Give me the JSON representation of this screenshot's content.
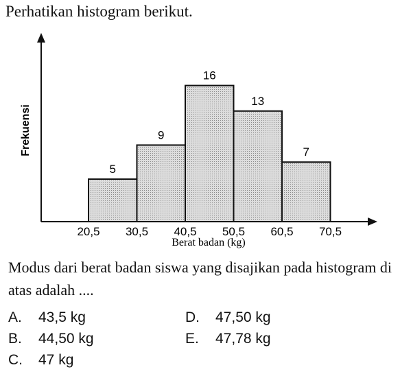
{
  "intro": "Perhatikan histogram berikut.",
  "chart_data": {
    "type": "bar",
    "categories": [
      "20,5-30,5",
      "30,5-40,5",
      "40,5-50,5",
      "50,5-60,5",
      "60,5-70,5"
    ],
    "edges": [
      "20,5",
      "30,5",
      "40,5",
      "50,5",
      "60,5",
      "70,5"
    ],
    "values": [
      5,
      9,
      16,
      13,
      7
    ],
    "data_labels": [
      "5",
      "9",
      "16",
      "13",
      "7"
    ],
    "xlabel": "Berat badan (kg)",
    "ylabel": "Frekuensi",
    "ylim": [
      0,
      20
    ],
    "grid": false,
    "bar_fill": "#d7d7d7"
  },
  "question": "Modus dari berat badan siswa yang disajikan pada histogram di atas adalah ....",
  "options": [
    {
      "letter": "A.",
      "text": "43,5 kg"
    },
    {
      "letter": "B.",
      "text": "44,50 kg"
    },
    {
      "letter": "C.",
      "text": "47 kg"
    },
    {
      "letter": "D.",
      "text": "47,50 kg"
    },
    {
      "letter": "E.",
      "text": "47,78 kg"
    }
  ]
}
